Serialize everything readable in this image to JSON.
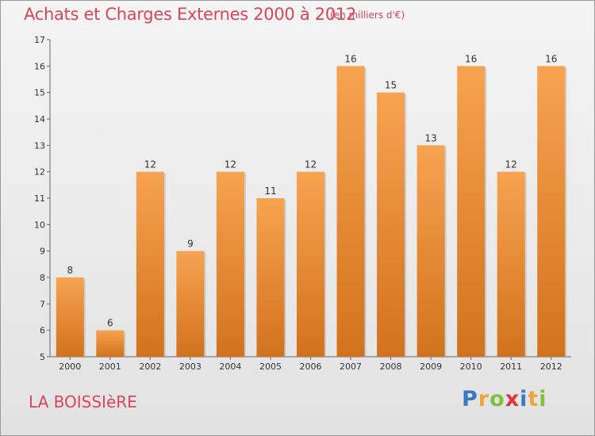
{
  "header": {
    "title": "Achats et Charges Externes 2000 à 2012",
    "subtitle": "(en milliers d'€)"
  },
  "footer": {
    "commune": "LA BOISSIèRE"
  },
  "logo": {
    "letters": [
      {
        "char": "P",
        "color": "#3a78c8"
      },
      {
        "char": "r",
        "color": "#f2a33a"
      },
      {
        "char": "o",
        "color": "#7fc040"
      },
      {
        "char": "x",
        "color": "#e0343c"
      },
      {
        "char": "i",
        "color": "#3a78c8"
      },
      {
        "char": "t",
        "color": "#f2a33a"
      },
      {
        "char": "i",
        "color": "#7fc040"
      }
    ]
  },
  "chart_data": {
    "type": "bar",
    "title": "Achats et Charges Externes 2000 à 2012",
    "subtitle": "(en milliers d'€)",
    "categories": [
      "2000",
      "2001",
      "2002",
      "2003",
      "2004",
      "2005",
      "2006",
      "2007",
      "2008",
      "2009",
      "2010",
      "2011",
      "2012"
    ],
    "values": [
      8,
      6,
      12,
      9,
      12,
      11,
      12,
      16,
      15,
      13,
      16,
      12,
      16
    ],
    "ylim": [
      5,
      17
    ],
    "yticks": [
      5,
      6,
      7,
      8,
      9,
      10,
      11,
      12,
      13,
      14,
      15,
      16,
      17
    ],
    "grid": false,
    "bar_color_top": "#f7a350",
    "bar_color_bottom": "#d2721e"
  }
}
